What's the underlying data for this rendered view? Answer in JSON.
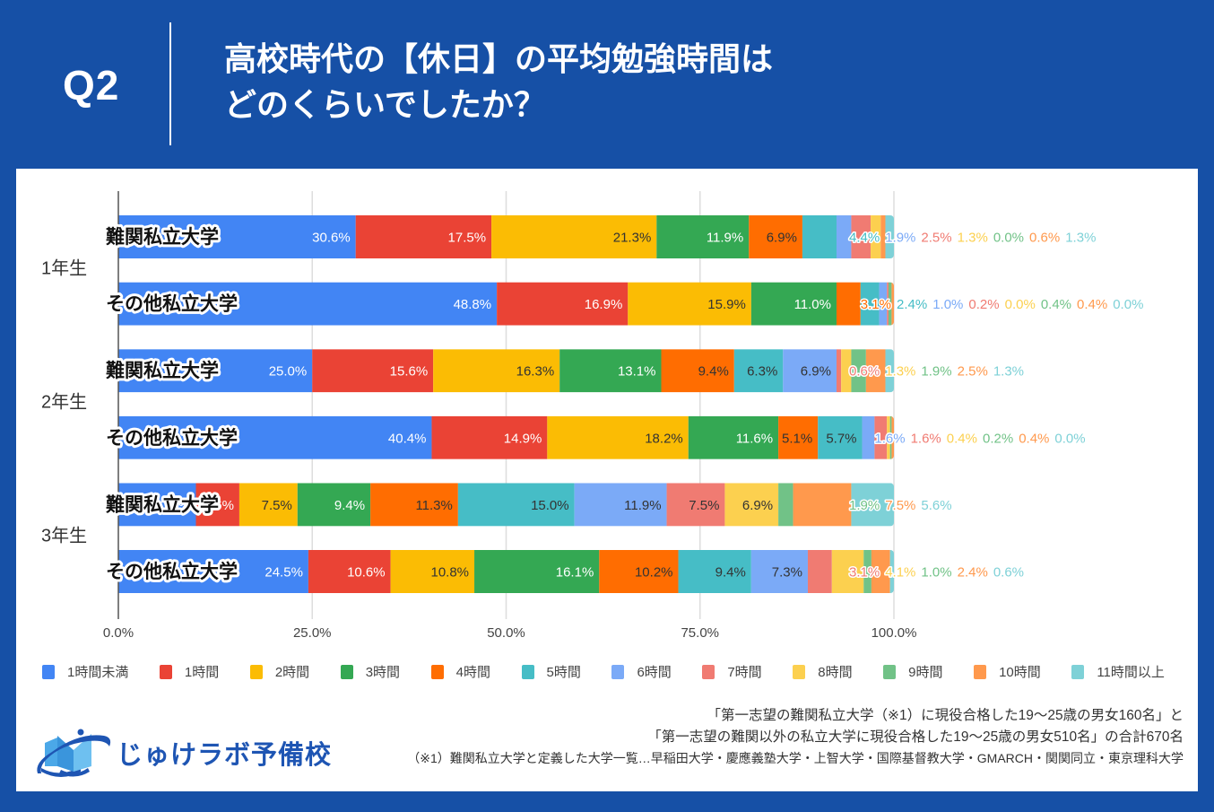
{
  "header": {
    "badge": "Q2",
    "title_lines": [
      "高校時代の【休日】の平均勉強時間は",
      "どのくらいでしたか？"
    ]
  },
  "chart_data": {
    "type": "bar",
    "orientation": "horizontal",
    "stacked": "percent",
    "title": "高校時代の【休日】の平均勉強時間はどのくらいでしたか？",
    "groups": [
      "1年生",
      "2年生",
      "3年生"
    ],
    "rows": [
      {
        "group": "1年生",
        "label": "難関私立大学"
      },
      {
        "group": "1年生",
        "label": "その他私立大学"
      },
      {
        "group": "2年生",
        "label": "難関私立大学"
      },
      {
        "group": "2年生",
        "label": "その他私立大学"
      },
      {
        "group": "3年生",
        "label": "難関私立大学"
      },
      {
        "group": "3年生",
        "label": "その他私立大学"
      }
    ],
    "series": [
      {
        "name": "1時間未満",
        "color": "#4285F4",
        "label_color": "#ffffff",
        "values": [
          30.6,
          48.8,
          25.0,
          40.4,
          10.0,
          24.5
        ]
      },
      {
        "name": "1時間",
        "color": "#EA4335",
        "label_color": "#ffffff",
        "values": [
          17.5,
          16.9,
          15.6,
          14.9,
          5.6,
          10.6
        ]
      },
      {
        "name": "2時間",
        "color": "#FBBC04",
        "label_color": "#333333",
        "values": [
          21.3,
          15.9,
          16.3,
          18.2,
          7.5,
          10.8
        ]
      },
      {
        "name": "3時間",
        "color": "#34A853",
        "label_color": "#ffffff",
        "values": [
          11.9,
          11.0,
          13.1,
          11.6,
          9.4,
          16.1
        ]
      },
      {
        "name": "4時間",
        "color": "#FF6D01",
        "label_color": "#333333",
        "values": [
          6.9,
          3.1,
          9.4,
          5.1,
          11.3,
          10.2
        ]
      },
      {
        "name": "5時間",
        "color": "#46BDC6",
        "label_color": "#333333",
        "values": [
          4.4,
          2.4,
          6.3,
          5.7,
          15.0,
          9.4
        ]
      },
      {
        "name": "6時間",
        "color": "#7BAAF7",
        "label_color": "#333333",
        "values": [
          1.9,
          1.0,
          6.9,
          1.6,
          11.9,
          7.3
        ]
      },
      {
        "name": "7時間",
        "color": "#F07B72",
        "label_color": "#333333",
        "values": [
          2.5,
          0.2,
          0.6,
          1.6,
          7.5,
          3.1
        ]
      },
      {
        "name": "8時間",
        "color": "#FCD04F",
        "label_color": "#333333",
        "values": [
          1.3,
          0.0,
          1.3,
          0.4,
          6.9,
          4.1
        ]
      },
      {
        "name": "9時間",
        "color": "#71C287",
        "label_color": "#333333",
        "values": [
          0.0,
          0.4,
          1.9,
          0.2,
          1.9,
          1.0
        ]
      },
      {
        "name": "10時間",
        "color": "#FF994D",
        "label_color": "#333333",
        "values": [
          0.6,
          0.4,
          2.5,
          0.4,
          7.5,
          2.4
        ]
      },
      {
        "name": "11時間以上",
        "color": "#7ED1D7",
        "label_color": "#333333",
        "values": [
          1.3,
          0.0,
          1.3,
          0.0,
          5.6,
          0.6
        ]
      }
    ],
    "xlim": [
      0,
      100
    ],
    "xtick_values": [
      0,
      25,
      50,
      75,
      100
    ],
    "xticks": [
      "0.0%",
      "25.0%",
      "50.0%",
      "75.0%",
      "100.0%"
    ],
    "xlabel": "",
    "ylabel": "",
    "grid": true,
    "legend": "bottom"
  },
  "footer": {
    "note_lines": [
      "「第一志望の難関私立大学（※1）に現役合格した19～25歳の男女160名」と",
      "「第一志望の難関以外の私立大学に現役合格した19～25歳の男女510名」の合計670名",
      "（※1）難関私立大学と定義した大学一覧…早稲田大学・慶應義塾大学・上智大学・国際基督教大学・GMARCH・関関同立・東京理科大学"
    ]
  },
  "logo": {
    "text": "じゅけラボ予備校",
    "icon": "open-book-icon"
  }
}
